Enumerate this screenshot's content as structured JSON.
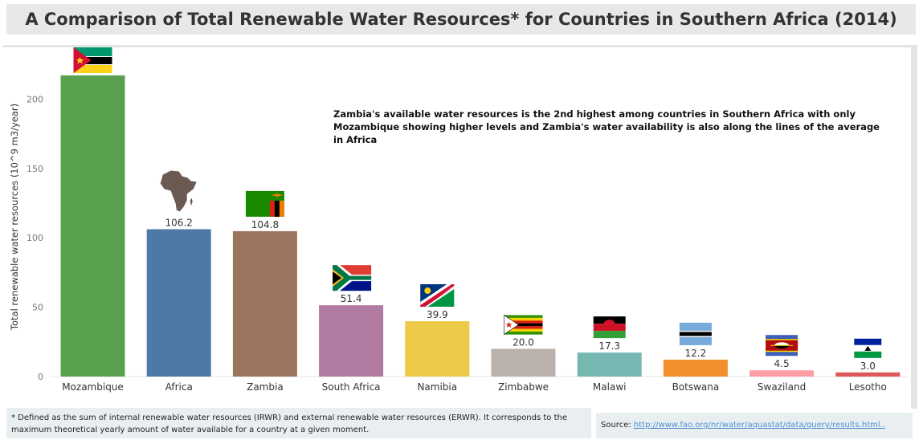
{
  "title": "A Comparison of Total Renewable Water Resources* for Countries in Southern Africa (2014)",
  "annotation": "Zambia's available water resources is the 2nd highest among countries in Southern Africa with only Mozambique showing higher levels and Zambia's water availability is also along the lines of the average in Africa",
  "footnote": "* Defined as the sum of internal renewable water resources (IRWR) and external renewable water resources (ERWR). It corresponds to the maximum theoretical yearly amount of water available for a country at a given moment.",
  "source": {
    "label": "Source:",
    "link_text": "http://www.fao.org/nr/water/aquastat/data/query/results.html.."
  },
  "chart_data": {
    "type": "bar",
    "ylabel": "Total renewable water resources (10^9 m3/year)",
    "ylim": [
      0,
      230
    ],
    "yticks": [
      0,
      50,
      100,
      150,
      200
    ],
    "grid": false,
    "categories": [
      "Mozambique",
      "Africa",
      "Zambia",
      "South Africa",
      "Namibia",
      "Zimbabwe",
      "Malawi",
      "Botswana",
      "Swaziland",
      "Lesotho"
    ],
    "values": [
      217.1,
      106.2,
      104.8,
      51.4,
      39.9,
      20.0,
      17.3,
      12.2,
      4.5,
      3.0
    ],
    "value_labels": [
      "",
      "106.2",
      "104.8",
      "51.4",
      "39.9",
      "20.0",
      "17.3",
      "12.2",
      "4.5",
      "3.0"
    ],
    "colors": [
      "#59a14f",
      "#4e79a7",
      "#9c755f",
      "#b07aa1",
      "#edc948",
      "#bab0ac",
      "#76b7b2",
      "#f28e2b",
      "#ff9da7",
      "#e15759"
    ],
    "icons": [
      "mozambique-flag-icon",
      "africa-map-icon",
      "zambia-flag-icon",
      "south-africa-flag-icon",
      "namibia-flag-icon",
      "zimbabwe-flag-icon",
      "malawi-flag-icon",
      "botswana-flag-icon",
      "swaziland-flag-icon",
      "lesotho-flag-icon"
    ]
  }
}
